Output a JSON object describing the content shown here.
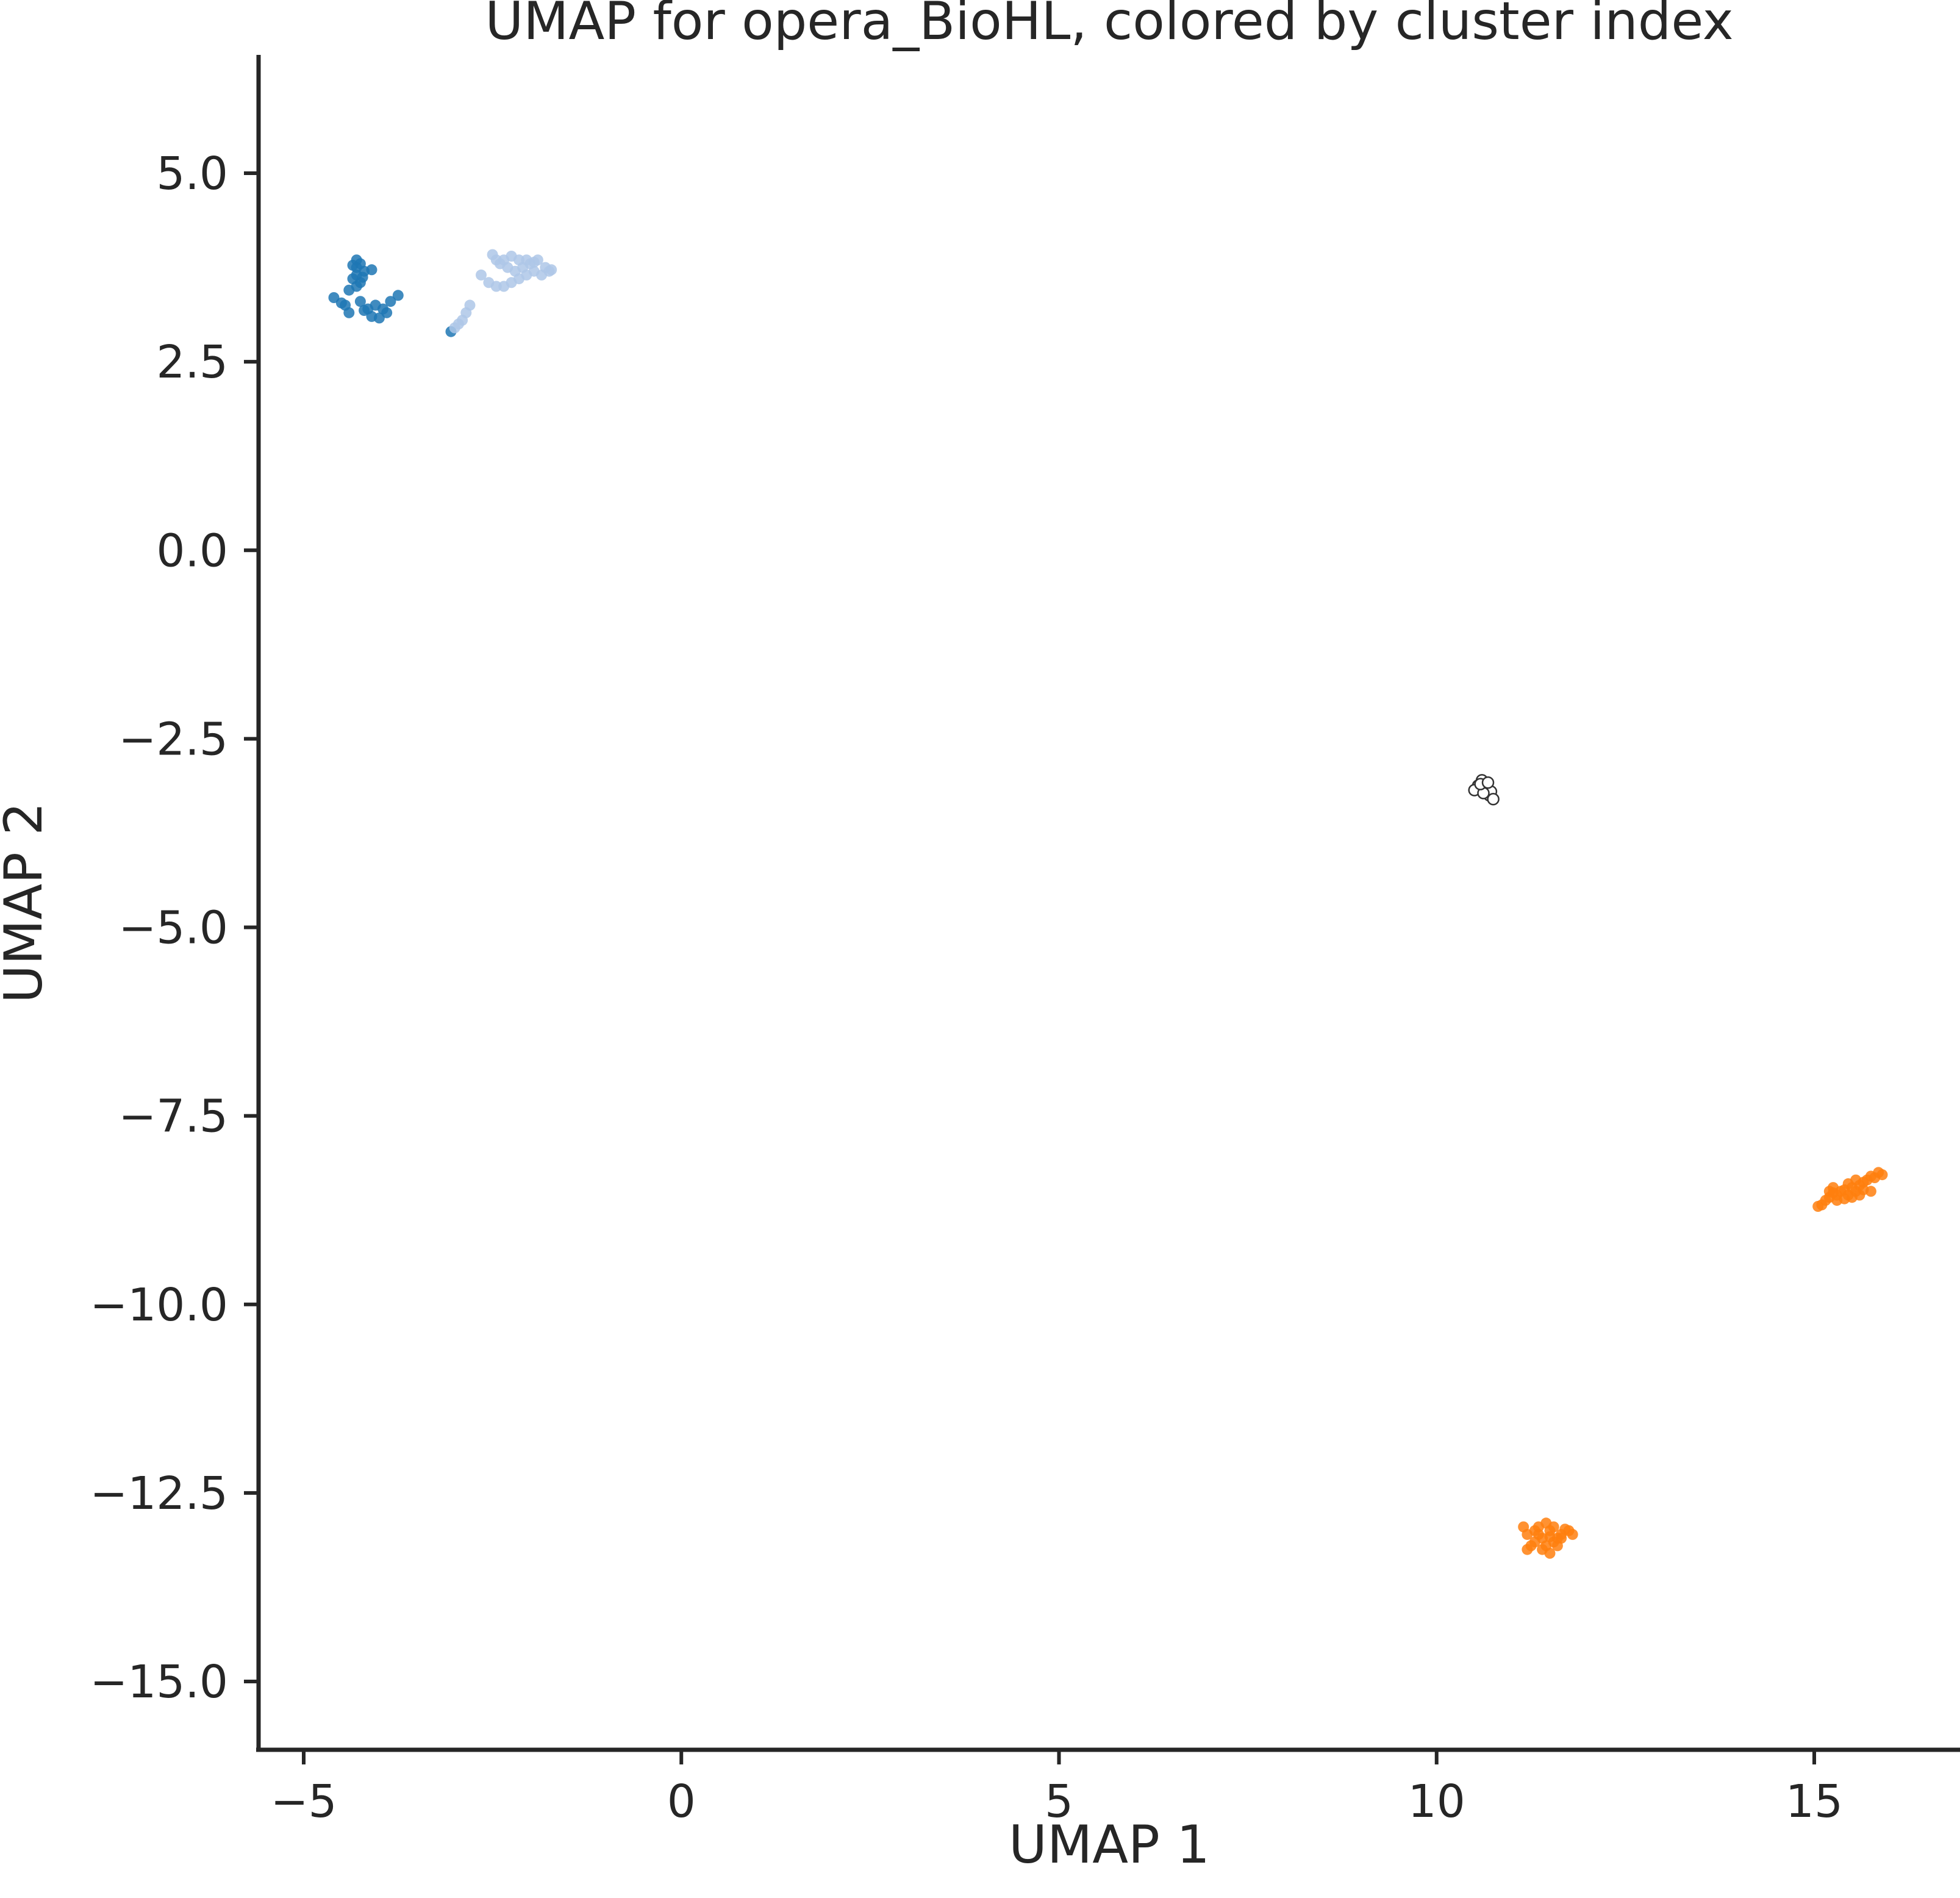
{
  "chart_data": {
    "type": "scatter",
    "title": "UMAP for opera_BioHL, colored by cluster index",
    "xlabel": "UMAP 1",
    "ylabel": "UMAP 2",
    "xlim": [
      -5.6,
      16.9
    ],
    "ylim": [
      -15.9,
      6.5
    ],
    "xticks": [
      -5,
      0,
      5,
      10,
      15
    ],
    "xtick_labels": [
      "−5",
      "0",
      "5",
      "10",
      "15"
    ],
    "yticks": [
      5.0,
      2.5,
      0.0,
      -2.5,
      -5.0,
      -7.5,
      -10.0,
      -12.5,
      -15.0
    ],
    "ytick_labels": [
      "5.0",
      "2.5",
      "0.0",
      "−2.5",
      "−5.0",
      "−7.5",
      "−10.0",
      "−12.5",
      "−15.0"
    ],
    "grid": false,
    "legend": "none",
    "series": [
      {
        "color": "#1f77b4",
        "hollow": false,
        "points": [
          [
            -4.3,
            3.85
          ],
          [
            -4.25,
            3.8
          ],
          [
            -4.3,
            3.75
          ],
          [
            -4.2,
            3.7
          ],
          [
            -4.3,
            3.65
          ],
          [
            -4.1,
            3.72
          ],
          [
            -4.35,
            3.6
          ],
          [
            -4.25,
            3.55
          ],
          [
            -4.3,
            3.5
          ],
          [
            -4.4,
            3.45
          ],
          [
            -4.35,
            3.78
          ],
          [
            -4.22,
            3.62
          ],
          [
            -4.6,
            3.35
          ],
          [
            -4.5,
            3.28
          ],
          [
            -4.45,
            3.25
          ],
          [
            -4.4,
            3.15
          ],
          [
            -4.25,
            3.3
          ],
          [
            -4.15,
            3.2
          ],
          [
            -4.1,
            3.1
          ],
          [
            -4.05,
            3.25
          ],
          [
            -3.95,
            3.2
          ],
          [
            -3.9,
            3.15
          ],
          [
            -3.85,
            3.3
          ],
          [
            -3.75,
            3.38
          ],
          [
            -4.2,
            3.18
          ],
          [
            -4.0,
            3.08
          ],
          [
            -3.05,
            2.9
          ]
        ]
      },
      {
        "color": "#aec7e8",
        "hollow": false,
        "points": [
          [
            -2.5,
            3.92
          ],
          [
            -2.45,
            3.85
          ],
          [
            -2.4,
            3.8
          ],
          [
            -2.3,
            3.75
          ],
          [
            -2.2,
            3.7
          ],
          [
            -2.35,
            3.85
          ],
          [
            -2.25,
            3.9
          ],
          [
            -2.15,
            3.85
          ],
          [
            -2.1,
            3.75
          ],
          [
            -2.0,
            3.8
          ],
          [
            -1.95,
            3.7
          ],
          [
            -1.9,
            3.85
          ],
          [
            -1.85,
            3.65
          ],
          [
            -1.8,
            3.75
          ],
          [
            -1.75,
            3.7
          ],
          [
            -1.72,
            3.72
          ],
          [
            -2.05,
            3.65
          ],
          [
            -2.15,
            3.6
          ],
          [
            -2.25,
            3.55
          ],
          [
            -2.35,
            3.5
          ],
          [
            -2.45,
            3.5
          ],
          [
            -2.55,
            3.55
          ],
          [
            -2.65,
            3.65
          ],
          [
            -2.8,
            3.25
          ],
          [
            -2.85,
            3.15
          ],
          [
            -2.9,
            3.05
          ],
          [
            -2.95,
            3.0
          ],
          [
            -3.0,
            2.95
          ],
          [
            -2.05,
            3.85
          ],
          [
            -1.95,
            3.82
          ]
        ]
      },
      {
        "color": "#ffffff",
        "hollow": true,
        "points": [
          [
            10.55,
            -3.12
          ],
          [
            10.6,
            -3.05
          ],
          [
            10.65,
            -3.15
          ],
          [
            10.7,
            -3.25
          ],
          [
            10.72,
            -3.2
          ],
          [
            10.5,
            -3.18
          ],
          [
            10.62,
            -3.22
          ],
          [
            10.75,
            -3.3
          ],
          [
            10.58,
            -3.1
          ],
          [
            10.68,
            -3.08
          ]
        ]
      },
      {
        "color": "#ff7f0e",
        "hollow": false,
        "points": [
          [
            15.05,
            -8.7
          ],
          [
            15.1,
            -8.68
          ],
          [
            15.15,
            -8.62
          ],
          [
            15.2,
            -8.58
          ],
          [
            15.25,
            -8.52
          ],
          [
            15.3,
            -8.55
          ],
          [
            15.35,
            -8.5
          ],
          [
            15.4,
            -8.48
          ],
          [
            15.45,
            -8.55
          ],
          [
            15.5,
            -8.45
          ],
          [
            15.55,
            -8.5
          ],
          [
            15.6,
            -8.42
          ],
          [
            15.65,
            -8.48
          ],
          [
            15.7,
            -8.35
          ],
          [
            15.75,
            -8.3
          ],
          [
            15.8,
            -8.32
          ],
          [
            15.85,
            -8.25
          ],
          [
            15.9,
            -8.28
          ],
          [
            15.2,
            -8.5
          ],
          [
            15.3,
            -8.62
          ],
          [
            15.4,
            -8.6
          ],
          [
            15.5,
            -8.58
          ],
          [
            15.6,
            -8.55
          ],
          [
            15.75,
            -8.5
          ],
          [
            15.25,
            -8.45
          ],
          [
            15.45,
            -8.4
          ],
          [
            15.65,
            -8.38
          ],
          [
            15.55,
            -8.35
          ],
          [
            11.15,
            -12.95
          ],
          [
            11.2,
            -13.05
          ],
          [
            11.25,
            -13.2
          ],
          [
            11.3,
            -13.0
          ],
          [
            11.35,
            -12.95
          ],
          [
            11.4,
            -13.1
          ],
          [
            11.45,
            -13.2
          ],
          [
            11.5,
            -13.0
          ],
          [
            11.55,
            -12.95
          ],
          [
            11.6,
            -13.1
          ],
          [
            11.65,
            -13.05
          ],
          [
            11.7,
            -12.98
          ],
          [
            11.75,
            -13.0
          ],
          [
            11.8,
            -13.05
          ],
          [
            11.3,
            -13.15
          ],
          [
            11.4,
            -13.25
          ],
          [
            11.5,
            -13.3
          ],
          [
            11.6,
            -13.2
          ],
          [
            11.35,
            -13.05
          ],
          [
            11.55,
            -13.15
          ],
          [
            11.45,
            -12.9
          ],
          [
            11.2,
            -13.25
          ],
          [
            11.65,
            -13.1
          ],
          [
            11.5,
            -13.08
          ]
        ]
      }
    ]
  }
}
